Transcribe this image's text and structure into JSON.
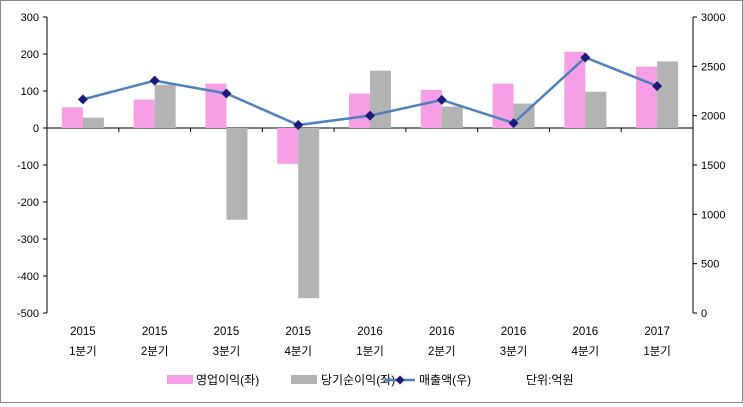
{
  "chart_data": {
    "type": "bar+line",
    "categories": [
      {
        "year": "2015",
        "quarter": "1분기"
      },
      {
        "year": "2015",
        "quarter": "2분기"
      },
      {
        "year": "2015",
        "quarter": "3분기"
      },
      {
        "year": "2015",
        "quarter": "4분기"
      },
      {
        "year": "2016",
        "quarter": "1분기"
      },
      {
        "year": "2016",
        "quarter": "2분기"
      },
      {
        "year": "2016",
        "quarter": "3분기"
      },
      {
        "year": "2016",
        "quarter": "4분기"
      },
      {
        "year": "2017",
        "quarter": "1분기"
      }
    ],
    "series": [
      {
        "name": "영업이익(좌)",
        "type": "bar",
        "axis": "left",
        "color": "#f79fe6",
        "values": [
          56,
          77,
          120,
          -97,
          93,
          103,
          120,
          206,
          166
        ]
      },
      {
        "name": "당기순이익(좌)",
        "type": "bar",
        "axis": "left",
        "color": "#b3b3b3",
        "values": [
          28,
          117,
          -248,
          -460,
          155,
          58,
          66,
          98,
          180
        ]
      },
      {
        "name": "매출액(우)",
        "type": "line",
        "axis": "right",
        "color": "#4f81bd",
        "marker_color": "#1f1a7a",
        "values": [
          2165,
          2355,
          2225,
          1905,
          2000,
          2160,
          1925,
          2590,
          2300
        ]
      }
    ],
    "left_axis": {
      "min": -500,
      "max": 300,
      "step": 100,
      "ticks": [
        "300",
        "200",
        "100",
        "0",
        "-100",
        "-200",
        "-300",
        "-400",
        "-500"
      ]
    },
    "right_axis": {
      "min": 0,
      "max": 3000,
      "step": 500,
      "ticks": [
        "3000",
        "2500",
        "2000",
        "1500",
        "1000",
        "500",
        "0"
      ]
    },
    "unit_note": "단위:억원",
    "legend_position": "bottom"
  }
}
